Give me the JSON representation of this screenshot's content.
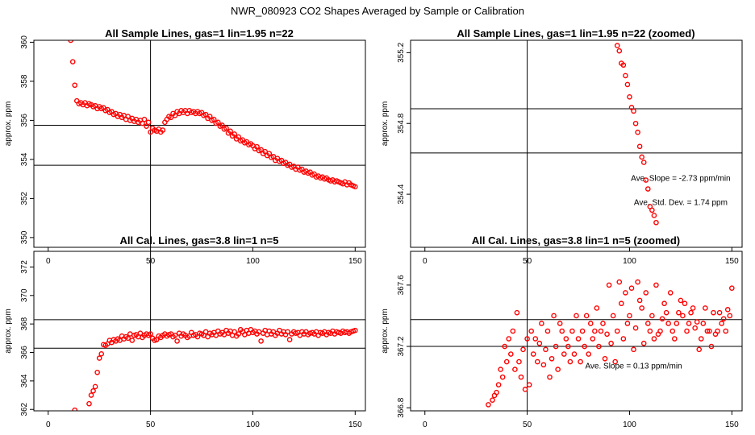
{
  "figure": {
    "title": "NWR_080923  CO2 Shapes Averaged by Sample or Calibration",
    "point_color": "#ff0000",
    "line_color": "#000000",
    "background": "#ffffff"
  },
  "chart_data": [
    {
      "id": "sample-all",
      "type": "scatter",
      "title": "All Sample Lines, gas=1 lin=1.95 n=22",
      "xlabel": "",
      "ylabel": "approx. ppm",
      "xlim": [
        -7,
        155
      ],
      "ylim": [
        349.5,
        360.1
      ],
      "xticks": [
        0,
        50,
        100,
        150
      ],
      "yticks": [
        350,
        352,
        354,
        356,
        358,
        360
      ],
      "hlines": [
        355.75,
        353.7
      ],
      "vlines": [
        50
      ],
      "annotations": [],
      "x": [
        11,
        12,
        13,
        14,
        15,
        16,
        17,
        18,
        19,
        20,
        21,
        22,
        23,
        24,
        25,
        26,
        27,
        28,
        29,
        30,
        31,
        32,
        33,
        34,
        35,
        36,
        37,
        38,
        39,
        40,
        41,
        42,
        43,
        44,
        45,
        46,
        47,
        48,
        49,
        50,
        51,
        52,
        53,
        54,
        55,
        56,
        57,
        58,
        59,
        60,
        61,
        62,
        63,
        64,
        65,
        66,
        67,
        68,
        69,
        70,
        71,
        72,
        73,
        74,
        75,
        76,
        77,
        78,
        79,
        80,
        81,
        82,
        83,
        84,
        85,
        86,
        87,
        88,
        89,
        90,
        91,
        92,
        93,
        94,
        95,
        96,
        97,
        98,
        99,
        100,
        101,
        102,
        103,
        104,
        105,
        106,
        107,
        108,
        109,
        110,
        111,
        112,
        113,
        114,
        115,
        116,
        117,
        118,
        119,
        120,
        121,
        122,
        123,
        124,
        125,
        126,
        127,
        128,
        129,
        130,
        131,
        132,
        133,
        134,
        135,
        136,
        137,
        138,
        139,
        140,
        141,
        142,
        143,
        144,
        145,
        146,
        147,
        148,
        149,
        150
      ],
      "y": [
        360.1,
        359.0,
        357.8,
        357.0,
        356.85,
        356.9,
        356.8,
        356.9,
        356.75,
        356.85,
        356.8,
        356.7,
        356.75,
        356.6,
        356.7,
        356.6,
        356.65,
        356.5,
        356.55,
        356.4,
        356.45,
        356.3,
        356.35,
        356.2,
        356.3,
        356.15,
        356.25,
        356.05,
        356.2,
        356.0,
        356.1,
        355.95,
        356.05,
        355.9,
        356.0,
        355.85,
        356.05,
        355.7,
        355.9,
        355.4,
        355.6,
        355.5,
        355.45,
        355.55,
        355.4,
        355.5,
        355.9,
        356.05,
        356.2,
        356.15,
        356.35,
        356.25,
        356.45,
        356.35,
        356.5,
        356.4,
        356.5,
        356.35,
        356.5,
        356.4,
        356.45,
        356.35,
        356.45,
        356.35,
        356.4,
        356.25,
        356.3,
        356.1,
        356.2,
        356.0,
        356.05,
        355.85,
        355.9,
        355.7,
        355.75,
        355.55,
        355.6,
        355.35,
        355.45,
        355.2,
        355.3,
        355.05,
        355.15,
        354.95,
        355.0,
        354.85,
        354.9,
        354.75,
        354.8,
        354.7,
        354.55,
        354.65,
        354.45,
        354.5,
        354.3,
        354.4,
        354.2,
        354.3,
        354.1,
        354.15,
        353.95,
        354.05,
        353.9,
        353.95,
        353.8,
        353.85,
        353.7,
        353.75,
        353.6,
        353.65,
        353.5,
        353.6,
        353.45,
        353.5,
        353.35,
        353.4,
        353.3,
        353.35,
        353.2,
        353.25,
        353.1,
        353.15,
        353.05,
        353.1,
        353.0,
        353.05,
        352.95,
        352.9,
        352.95,
        352.85,
        352.9,
        352.85,
        352.8,
        352.75,
        352.85,
        352.7,
        352.8,
        352.7,
        352.65,
        352.6
      ]
    },
    {
      "id": "sample-zoomed",
      "type": "scatter",
      "title": "All Sample Lines, gas=1 lin=1.95 n=22 (zoomed)",
      "xlabel": "",
      "ylabel": "approx. ppm",
      "xlim": [
        -7,
        155
      ],
      "ylim": [
        354.1,
        355.27
      ],
      "xticks": [
        0,
        50,
        100,
        150
      ],
      "yticks": [
        354.4,
        354.8,
        355.2
      ],
      "hlines": [
        354.883,
        354.633
      ],
      "vlines": [
        50
      ],
      "annotations": [
        {
          "text": "Ave. Slope = -2.73  ppm/min",
          "x": 125,
          "y": 354.475
        },
        {
          "text": "Ave. Std. Dev. = 1.74  ppm",
          "x": 125,
          "y": 354.34
        }
      ],
      "x": [
        94,
        95,
        96,
        97,
        98,
        99,
        100,
        101,
        102,
        103,
        104,
        105,
        106,
        107,
        108,
        109,
        110,
        111,
        112,
        113
      ],
      "y": [
        355.24,
        355.21,
        355.14,
        355.13,
        355.07,
        355.02,
        354.95,
        354.89,
        354.87,
        354.8,
        354.75,
        354.67,
        354.61,
        354.58,
        354.48,
        354.43,
        354.33,
        354.31,
        354.28,
        354.24
      ]
    },
    {
      "id": "cal-all",
      "type": "scatter",
      "title": "All Cal. Lines, gas=3.8 lin=1 n=5",
      "xlabel": "",
      "ylabel": "approx. ppm",
      "xlim": [
        -7,
        155
      ],
      "ylim": [
        361.9,
        373.1
      ],
      "xticks": [
        0,
        50,
        100,
        150
      ],
      "yticks": [
        362,
        364,
        366,
        368,
        370,
        372
      ],
      "hlines": [
        368.3,
        366.3
      ],
      "vlines": [
        50
      ],
      "annotations": [],
      "x": [
        13,
        20,
        21,
        22,
        23,
        24,
        25,
        26,
        27,
        28,
        29,
        30,
        31,
        32,
        33,
        34,
        35,
        36,
        37,
        38,
        39,
        40,
        41,
        42,
        43,
        44,
        45,
        46,
        47,
        48,
        49,
        50,
        51,
        52,
        53,
        54,
        55,
        56,
        57,
        58,
        59,
        60,
        61,
        62,
        63,
        64,
        65,
        66,
        67,
        68,
        69,
        70,
        71,
        72,
        73,
        74,
        75,
        76,
        77,
        78,
        79,
        80,
        81,
        82,
        83,
        84,
        85,
        86,
        87,
        88,
        89,
        90,
        91,
        92,
        93,
        94,
        95,
        96,
        97,
        98,
        99,
        100,
        101,
        102,
        103,
        104,
        105,
        106,
        107,
        108,
        109,
        110,
        111,
        112,
        113,
        114,
        115,
        116,
        117,
        118,
        119,
        120,
        121,
        122,
        123,
        124,
        125,
        126,
        127,
        128,
        129,
        130,
        131,
        132,
        133,
        134,
        135,
        136,
        137,
        138,
        139,
        140,
        141,
        142,
        143,
        144,
        145,
        146,
        147,
        148,
        149,
        150
      ],
      "y": [
        361.95,
        362.4,
        363.0,
        363.3,
        363.6,
        364.6,
        365.6,
        365.9,
        366.55,
        366.5,
        366.6,
        366.85,
        366.7,
        366.9,
        366.8,
        366.95,
        366.85,
        367.15,
        366.95,
        367.1,
        367.0,
        367.3,
        366.85,
        367.2,
        367.25,
        367.1,
        367.35,
        367.05,
        367.2,
        367.3,
        367.2,
        367.3,
        367.0,
        366.85,
        366.9,
        367.15,
        367.05,
        367.2,
        367.3,
        367.15,
        367.25,
        367.3,
        367.1,
        367.2,
        366.8,
        367.35,
        367.15,
        367.3,
        367.2,
        367.05,
        367.15,
        367.4,
        367.2,
        367.25,
        367.1,
        367.35,
        367.3,
        367.2,
        367.45,
        367.1,
        367.35,
        367.25,
        367.4,
        367.2,
        367.5,
        367.3,
        367.4,
        367.25,
        367.55,
        367.35,
        367.5,
        367.2,
        367.45,
        367.15,
        367.3,
        367.6,
        367.45,
        367.25,
        367.55,
        367.35,
        367.6,
        367.4,
        367.5,
        367.3,
        367.45,
        366.8,
        367.35,
        367.55,
        367.25,
        367.5,
        367.3,
        367.45,
        367.2,
        367.35,
        367.55,
        367.3,
        367.45,
        367.25,
        367.45,
        366.9,
        367.3,
        367.45,
        367.35,
        367.4,
        367.2,
        367.45,
        367.3,
        367.45,
        367.25,
        367.35,
        367.4,
        367.3,
        367.45,
        367.2,
        367.4,
        367.35,
        367.45,
        367.25,
        367.4,
        367.35,
        367.5,
        367.3,
        367.45,
        367.4,
        367.35,
        367.5,
        367.4,
        367.45,
        367.35,
        367.45,
        367.5,
        367.55
      ]
    },
    {
      "id": "cal-zoomed",
      "type": "scatter",
      "title": "All Cal. Lines, gas=3.8 lin=1 n=5 (zoomed)",
      "xlabel": "",
      "ylabel": "approx. ppm",
      "xlim": [
        -7,
        155
      ],
      "ylim": [
        366.78,
        367.82
      ],
      "xticks": [
        0,
        50,
        100,
        150
      ],
      "yticks": [
        366.8,
        367.2,
        367.6
      ],
      "hlines": [
        367.375,
        367.2
      ],
      "vlines": [
        50
      ],
      "annotations": [
        {
          "text": "Ave. Slope = 0.13  ppm/min",
          "x": 102,
          "y": 367.055
        }
      ],
      "x": [
        31,
        33,
        34,
        35,
        36,
        37,
        38,
        39,
        40,
        41,
        42,
        43,
        44,
        45,
        46,
        47,
        48,
        49,
        50,
        51,
        52,
        53,
        54,
        55,
        56,
        57,
        58,
        59,
        60,
        61,
        62,
        63,
        64,
        65,
        66,
        67,
        68,
        69,
        70,
        71,
        72,
        73,
        74,
        75,
        76,
        77,
        78,
        79,
        80,
        81,
        82,
        83,
        84,
        85,
        86,
        87,
        88,
        89,
        90,
        91,
        92,
        93,
        94,
        95,
        96,
        97,
        98,
        99,
        100,
        101,
        102,
        103,
        104,
        105,
        106,
        107,
        108,
        109,
        110,
        111,
        112,
        113,
        114,
        115,
        116,
        117,
        118,
        119,
        120,
        121,
        122,
        123,
        124,
        125,
        126,
        127,
        128,
        129,
        130,
        131,
        132,
        133,
        134,
        135,
        136,
        137,
        138,
        139,
        140,
        141,
        142,
        143,
        144,
        145,
        146,
        147,
        148,
        149,
        150
      ],
      "y": [
        366.82,
        366.85,
        366.88,
        366.9,
        366.95,
        367.05,
        367.0,
        367.2,
        367.1,
        367.25,
        367.15,
        367.3,
        367.05,
        367.42,
        367.1,
        367.0,
        367.18,
        366.92,
        367.25,
        366.95,
        367.3,
        367.15,
        367.25,
        367.1,
        367.22,
        367.35,
        367.08,
        367.18,
        367.3,
        367.0,
        367.12,
        367.4,
        367.2,
        367.05,
        367.35,
        367.3,
        367.15,
        367.25,
        367.2,
        367.1,
        367.3,
        367.15,
        367.4,
        367.25,
        367.1,
        367.3,
        367.2,
        367.4,
        367.15,
        367.35,
        367.25,
        367.3,
        367.45,
        367.2,
        367.3,
        367.35,
        367.12,
        367.28,
        367.6,
        367.22,
        367.4,
        367.1,
        367.3,
        367.62,
        367.48,
        367.25,
        367.55,
        367.35,
        367.4,
        367.58,
        367.18,
        367.32,
        367.62,
        367.5,
        367.45,
        367.22,
        367.55,
        367.35,
        367.3,
        367.4,
        367.25,
        367.6,
        367.28,
        367.3,
        367.38,
        367.48,
        367.42,
        367.35,
        367.55,
        367.3,
        367.25,
        367.35,
        367.42,
        367.5,
        367.4,
        367.48,
        367.3,
        367.35,
        367.42,
        367.45,
        367.32,
        367.36,
        367.18,
        367.25,
        367.35,
        367.45,
        367.3,
        367.3,
        367.2,
        367.42,
        367.28,
        367.3,
        367.42,
        367.35,
        367.38,
        367.3,
        367.44,
        367.4,
        367.58
      ]
    }
  ]
}
